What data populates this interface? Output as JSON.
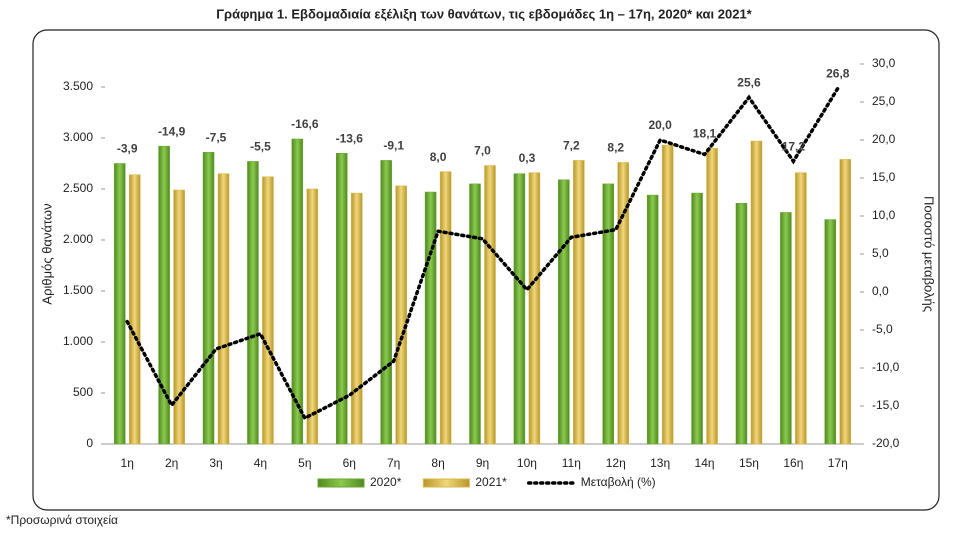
{
  "chart_data": {
    "type": "bar",
    "title": "Γράφημα 1.  Εβδομαδιαία εξέλιξη των θανάτων, τις εβδομάδες 1η – 17η, 2020* και 2021*",
    "y_label": "Αριθμός θανάτων",
    "y2_label": "Ποσοστό μεταβολής",
    "footnote": "*Προσωρινά στοιχεία",
    "categories": [
      "1η",
      "2η",
      "3η",
      "4η",
      "5η",
      "6η",
      "7η",
      "8η",
      "9η",
      "10η",
      "11η",
      "12η",
      "13η",
      "14η",
      "15η",
      "16η",
      "17η"
    ],
    "series": [
      {
        "name": "2020*",
        "color": "#6aa632",
        "values": [
          2750,
          2920,
          2860,
          2770,
          2990,
          2850,
          2780,
          2470,
          2550,
          2650,
          2590,
          2550,
          2440,
          2460,
          2360,
          2270,
          2200
        ]
      },
      {
        "name": "2021*",
        "color": "#d9b84a",
        "values": [
          2640,
          2490,
          2650,
          2620,
          2500,
          2460,
          2530,
          2670,
          2730,
          2660,
          2780,
          2760,
          2930,
          2900,
          2970,
          2660,
          2790
        ]
      },
      {
        "name": "Μεταβολή (%)",
        "type": "line",
        "axis": "y2",
        "color": "#000000",
        "values": [
          -3.9,
          -14.9,
          -7.5,
          -5.5,
          -16.6,
          -13.6,
          -9.1,
          8.0,
          7.0,
          0.3,
          7.2,
          8.2,
          20.0,
          18.1,
          25.6,
          17.2,
          26.8
        ],
        "value_labels": [
          "-3,9",
          "-14,9",
          "-7,5",
          "-5,5",
          "-16,6",
          "-13,6",
          "-9,1",
          "8,0",
          "7,0",
          "0,3",
          "7,2",
          "8,2",
          "20,0",
          "18,1",
          "25,6",
          "17,2",
          "26,8"
        ]
      }
    ],
    "ylim": [
      0,
      3725
    ],
    "yticks": [
      0,
      500,
      {
        "value": 1000,
        "label": "1.000"
      },
      {
        "value": 1500,
        "label": "1.500"
      },
      {
        "value": 2000,
        "label": "2.000"
      },
      {
        "value": 2500,
        "label": "2.500"
      },
      {
        "value": 3000,
        "label": "3.000"
      },
      {
        "value": 3500,
        "label": "3.500"
      }
    ],
    "y2lim": [
      -20,
      30
    ],
    "y2ticks": [
      {
        "value": -20,
        "label": "-20,0"
      },
      {
        "value": -15,
        "label": "-15,0"
      },
      {
        "value": -10,
        "label": "-10,0"
      },
      {
        "value": -5,
        "label": "-5,0"
      },
      {
        "value": 0,
        "label": "0,0"
      },
      {
        "value": 5,
        "label": "5,0"
      },
      {
        "value": 10,
        "label": "10,0"
      },
      {
        "value": 15,
        "label": "15,0"
      },
      {
        "value": 20,
        "label": "20,0"
      },
      {
        "value": 25,
        "label": "25,0"
      },
      {
        "value": 30,
        "label": "30,0"
      }
    ],
    "grid": false,
    "legend": "bottom"
  }
}
